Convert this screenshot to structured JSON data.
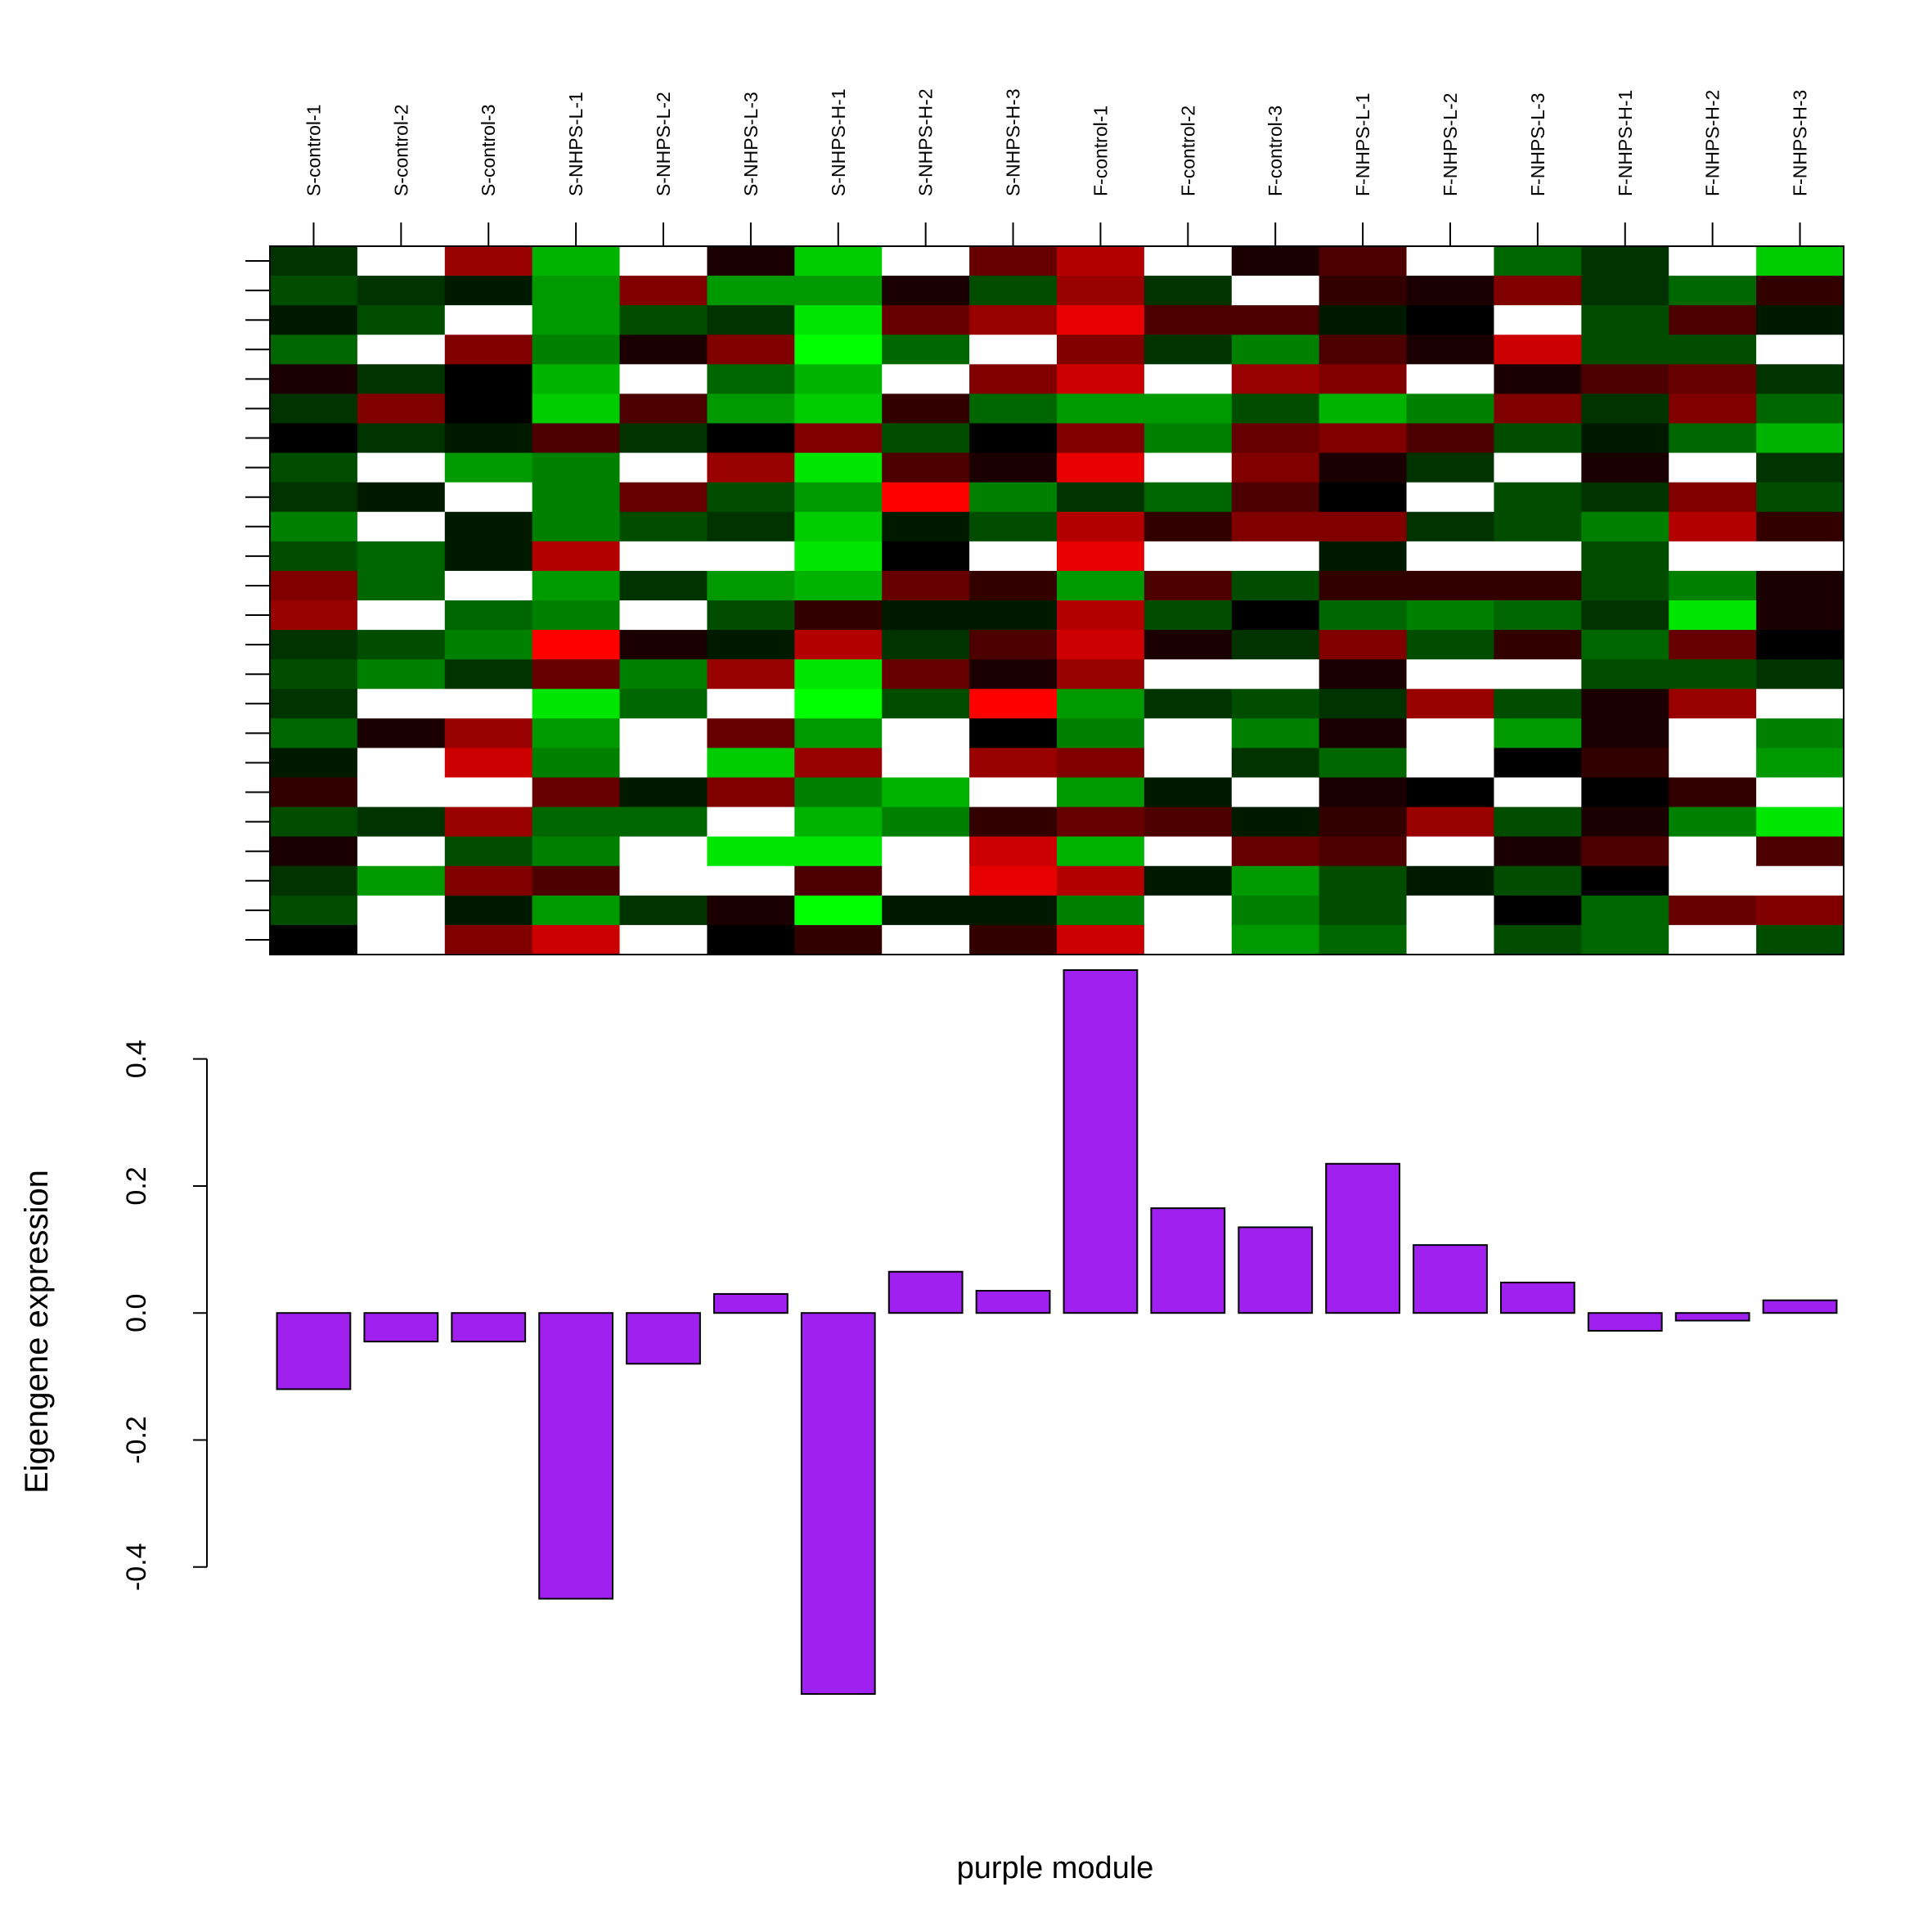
{
  "chart_data": {
    "type": "bar",
    "xlabel": "purple module",
    "ylabel": "Eigengene expression",
    "categories": [
      "S-control-1",
      "S-control-2",
      "S-control-3",
      "S-NHPS-L-1",
      "S-NHPS-L-2",
      "S-NHPS-L-3",
      "S-NHPS-H-1",
      "S-NHPS-H-2",
      "S-NHPS-H-3",
      "F-control-1",
      "F-control-2",
      "F-control-3",
      "F-NHPS-L-1",
      "F-NHPS-L-2",
      "F-NHPS-L-3",
      "F-NHPS-H-1",
      "F-NHPS-H-2",
      "F-NHPS-H-3"
    ],
    "values": [
      -0.12,
      -0.045,
      -0.045,
      -0.45,
      -0.08,
      0.03,
      -0.6,
      0.065,
      0.035,
      0.54,
      0.165,
      0.135,
      0.235,
      0.107,
      0.048,
      -0.028,
      -0.012,
      0.02
    ],
    "color": "#a020f0",
    "ylim": [
      -0.6,
      0.54
    ],
    "yticks": [
      -0.4,
      -0.2,
      {
        "value": 0,
        "label": "0.0"
      },
      0.2,
      0.4
    ],
    "heatmap": [
      [
        -0.2,
        -0.3,
        -0.1,
        -0.4,
        0.1,
        -0.2,
        0,
        -0.3,
        -0.2,
        -0.5,
        -0.3,
        0.5,
        0.6,
        -0.2,
        -0.3,
        -0.2,
        -0.4,
        -0.1,
        0.2,
        -0.3,
        0.1,
        -0.2,
        -0.3,
        0
      ],
      [
        null,
        -0.2,
        -0.3,
        null,
        -0.2,
        0.5,
        -0.2,
        null,
        -0.1,
        null,
        -0.4,
        -0.4,
        null,
        -0.3,
        -0.5,
        null,
        0.1,
        null,
        null,
        -0.2,
        null,
        -0.6,
        null,
        null
      ],
      [
        0.6,
        -0.1,
        null,
        0.5,
        0,
        0,
        -0.1,
        -0.6,
        null,
        -0.1,
        -0.1,
        null,
        -0.4,
        -0.5,
        -0.2,
        null,
        0.6,
        0.8,
        null,
        0.6,
        -0.3,
        0.5,
        -0.1,
        0.5
      ],
      [
        -0.7,
        -0.6,
        -0.6,
        -0.5,
        -0.7,
        -0.8,
        0.3,
        -0.5,
        -0.5,
        -0.5,
        0.7,
        -0.6,
        -0.5,
        1.0,
        0.4,
        -0.9,
        -0.6,
        -0.5,
        0.4,
        -0.4,
        -0.5,
        0.3,
        -0.6,
        0.8
      ],
      [
        null,
        0.5,
        -0.3,
        0.1,
        null,
        0.3,
        -0.2,
        null,
        0.4,
        -0.3,
        null,
        -0.2,
        null,
        0.1,
        -0.5,
        -0.4,
        null,
        null,
        -0.1,
        -0.4,
        null,
        null,
        -0.2,
        null
      ],
      [
        0.1,
        -0.6,
        -0.2,
        0.5,
        -0.4,
        -0.6,
        0,
        0.6,
        -0.3,
        -0.2,
        null,
        -0.6,
        -0.3,
        -0.1,
        0.6,
        null,
        0.4,
        -0.8,
        0.5,
        null,
        -0.9,
        null,
        0.1,
        0
      ],
      [
        -0.8,
        -0.6,
        -0.9,
        -1.0,
        -0.7,
        -0.8,
        0.5,
        -0.9,
        -0.6,
        -0.8,
        -0.9,
        -0.7,
        0.2,
        0.7,
        -0.9,
        -1.0,
        -0.6,
        0.6,
        -0.5,
        -0.7,
        -0.9,
        0.3,
        -1.0,
        0.2
      ],
      [
        null,
        0.1,
        0.4,
        -0.4,
        null,
        0.2,
        -0.3,
        0.3,
        1.0,
        -0.1,
        0,
        0.4,
        -0.1,
        -0.2,
        0.4,
        -0.3,
        null,
        null,
        -0.7,
        -0.5,
        null,
        null,
        -0.1,
        null
      ],
      [
        0.4,
        -0.3,
        0.6,
        null,
        0.5,
        -0.4,
        0,
        0.1,
        -0.5,
        -0.3,
        null,
        0.2,
        -0.1,
        0.3,
        0.1,
        1.0,
        0,
        0.6,
        null,
        0.2,
        0.8,
        0.9,
        -0.1,
        0.2
      ],
      [
        0.7,
        0.6,
        0.9,
        0.5,
        0.8,
        -0.6,
        0.5,
        0.9,
        -0.2,
        0.7,
        0.9,
        -0.6,
        0.7,
        0.8,
        0.6,
        -0.6,
        -0.5,
        0.5,
        -0.6,
        0.4,
        -0.7,
        0.7,
        -0.5,
        0.8
      ],
      [
        null,
        -0.2,
        0.3,
        -0.2,
        null,
        -0.6,
        -0.5,
        null,
        -0.4,
        0.2,
        null,
        0.3,
        -0.3,
        0.1,
        null,
        -0.2,
        null,
        null,
        -0.1,
        0.3,
        null,
        -0.1,
        null,
        null
      ],
      [
        0.1,
        null,
        0.3,
        -0.5,
        0.6,
        -0.3,
        0.4,
        0.5,
        0.3,
        0.5,
        null,
        -0.3,
        0,
        -0.2,
        null,
        -0.3,
        -0.5,
        -0.2,
        null,
        -0.1,
        0.4,
        -0.6,
        -0.5,
        -0.6
      ],
      [
        0.3,
        0.2,
        -0.1,
        0.3,
        0.5,
        -0.7,
        0.5,
        0.1,
        0,
        0.5,
        -0.1,
        0.2,
        -0.4,
        0.5,
        0.1,
        -0.2,
        0.1,
        -0.4,
        0.1,
        0.2,
        0.3,
        -0.3,
        -0.3,
        -0.4
      ],
      [
        null,
        0.1,
        0,
        0.1,
        null,
        -0.5,
        0.3,
        -0.2,
        null,
        -0.2,
        null,
        0.2,
        -0.5,
        -0.3,
        null,
        0.6,
        null,
        null,
        0,
        0.6,
        null,
        -0.1,
        null,
        null
      ],
      [
        -0.4,
        0.5,
        null,
        0.8,
        0.1,
        0.5,
        -0.3,
        null,
        -0.3,
        -0.3,
        null,
        0.2,
        -0.4,
        0.2,
        null,
        -0.3,
        -0.6,
        0,
        null,
        -0.3,
        0.1,
        -0.3,
        0,
        -0.3
      ],
      [
        -0.2,
        -0.2,
        -0.3,
        -0.3,
        0.3,
        -0.2,
        -0.1,
        0.1,
        -0.2,
        -0.5,
        -0.3,
        -0.3,
        -0.2,
        -0.4,
        -0.3,
        0.1,
        0.1,
        0.2,
        0,
        0.1,
        0.3,
        0,
        -0.4,
        -0.4
      ],
      [
        null,
        -0.4,
        0.3,
        -0.3,
        0.4,
        0.5,
        -0.4,
        null,
        0.5,
        0.7,
        null,
        -0.5,
        -0.9,
        0.4,
        -0.3,
        0.6,
        null,
        null,
        0.2,
        -0.5,
        null,
        null,
        0.4,
        null
      ],
      [
        -0.8,
        0.2,
        -0.1,
        null,
        -0.2,
        -0.4,
        -0.7,
        -0.2,
        -0.3,
        0.2,
        null,
        0.1,
        0.1,
        0,
        -0.2,
        null,
        -0.5,
        -0.6,
        null,
        -0.9,
        0.3,
        null,
        0.5,
        -0.3
      ]
    ]
  }
}
